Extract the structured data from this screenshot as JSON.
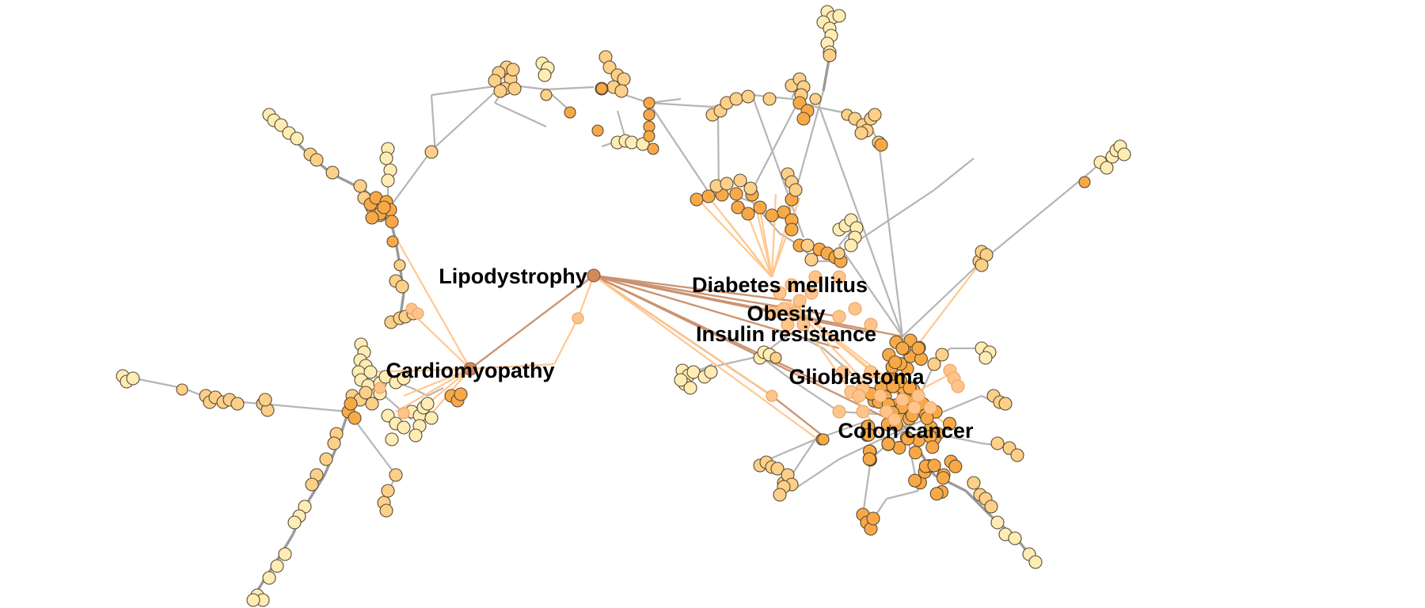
{
  "diagram": {
    "type": "network",
    "labels": {
      "lipodystrophy": "Lipodystrophy",
      "diabetes": "Diabetes mellitus",
      "obesity": "Obesity",
      "insulin": "Insulin resistance",
      "cardiomyopathy": "Cardiomyopathy",
      "glioblastoma": "Glioblastoma",
      "colon": "Colon cancer"
    },
    "colors": {
      "node_light": "#fdedb5",
      "node_mid": "#fcd088",
      "node_dark": "#f8a946",
      "hub_orange_edge": "#ffc58a",
      "hub_brown_edge": "#c98f6c",
      "background_edge": "#b5b5b5"
    }
  }
}
